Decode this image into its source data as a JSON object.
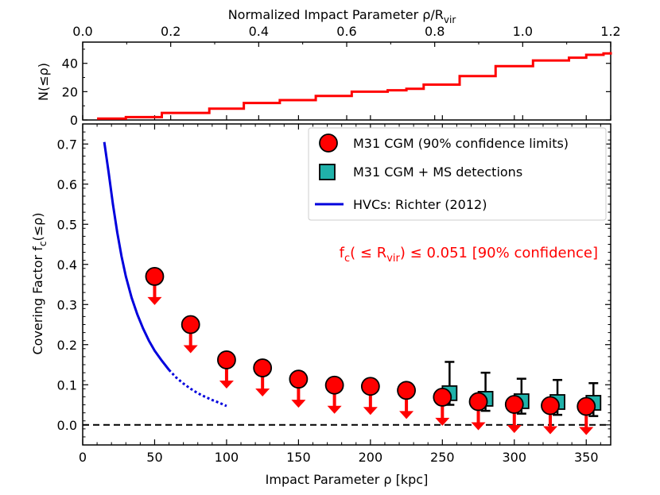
{
  "chart_data": [
    {
      "type": "line",
      "panel": "top",
      "xlabel_main": "Normalized Impact Parameter ρ/R",
      "xlabel_sub": "vir",
      "ylabel": "N(≤ρ)",
      "xlim": [
        0.0,
        1.2
      ],
      "ylim": [
        0,
        55
      ],
      "x_ticks": [
        "0.0",
        "0.2",
        "0.4",
        "0.6",
        "0.8",
        "1.0",
        "1.2"
      ],
      "y_ticks": [
        "0",
        "20",
        "40"
      ],
      "step_color": "#ff0000",
      "steps": {
        "x": [
          0.0,
          30,
          55,
          88,
          112,
          137,
          162,
          187,
          212,
          225,
          237,
          262,
          287,
          313,
          338,
          350,
          362,
          367
        ],
        "n": [
          1,
          2,
          5,
          8,
          12,
          14,
          17,
          20,
          21,
          22,
          25,
          31,
          38,
          42,
          44,
          46,
          47,
          48
        ]
      }
    },
    {
      "type": "scatter",
      "panel": "bottom",
      "xlabel": "Impact Parameter ρ [kpc]",
      "ylabel_main": "Covering Factor f",
      "ylabel_sub": "c",
      "ylabel_tail": "(≤ρ)",
      "xlim": [
        0,
        367
      ],
      "ylim": [
        -0.05,
        0.75
      ],
      "x_ticks": [
        "0",
        "50",
        "100",
        "150",
        "200",
        "250",
        "300",
        "350"
      ],
      "y_ticks": [
        "0.0",
        "0.1",
        "0.2",
        "0.3",
        "0.4",
        "0.5",
        "0.6",
        "0.7"
      ],
      "upper_limits": {
        "name": "M31 CGM (90% confidence limits)",
        "color": "#ff0000",
        "x": [
          50,
          75,
          100,
          125,
          150,
          175,
          200,
          225,
          250,
          275,
          300,
          325,
          350
        ],
        "y": [
          0.37,
          0.25,
          0.162,
          0.142,
          0.114,
          0.099,
          0.096,
          0.086,
          0.069,
          0.058,
          0.051,
          0.048,
          0.046
        ]
      },
      "detections": {
        "name": "M31 CGM + MS detections",
        "color": "#20b2aa",
        "x": [
          255,
          280,
          305,
          330,
          355
        ],
        "y": [
          0.079,
          0.065,
          0.059,
          0.057,
          0.055
        ],
        "y_low": [
          0.05,
          0.035,
          0.028,
          0.025,
          0.022
        ],
        "y_high": [
          0.157,
          0.13,
          0.115,
          0.112,
          0.104
        ]
      },
      "hvc_curve": {
        "name": "HVCs: Richter (2012)",
        "color": "#0000dd",
        "x": [
          15,
          18,
          21,
          24,
          27,
          30,
          34,
          38,
          42,
          46,
          50,
          55,
          60,
          65,
          70,
          75,
          80,
          85,
          90,
          95,
          100
        ],
        "y": [
          0.705,
          0.63,
          0.55,
          0.48,
          0.42,
          0.37,
          0.317,
          0.275,
          0.24,
          0.21,
          0.185,
          0.16,
          0.137,
          0.118,
          0.103,
          0.09,
          0.079,
          0.07,
          0.062,
          0.055,
          0.047
        ],
        "solid_until": 60
      },
      "zero_line": 0.0,
      "annotation_main": "f",
      "annotation_sub1": "c",
      "annotation_mid": "( ≤ R",
      "annotation_sub2": "vir",
      "annotation_tail": ") ≤ 0.051 [90% confidence]",
      "legend_position": "top-right"
    }
  ]
}
